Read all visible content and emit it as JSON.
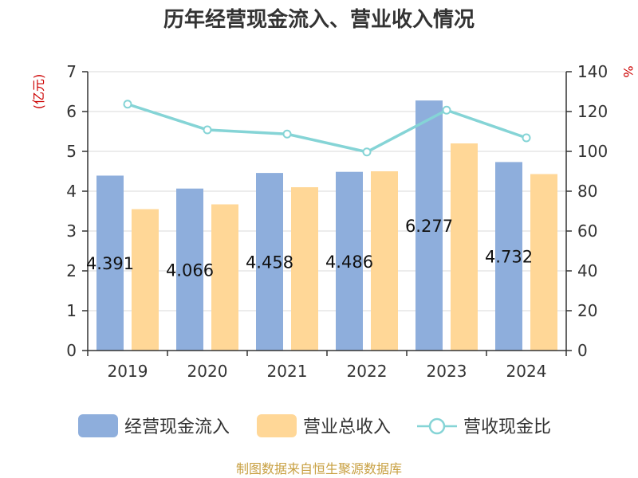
{
  "chart_data": {
    "type": "bar",
    "title": "历年经营现金流入、营业收入情况",
    "categories": [
      "2019",
      "2020",
      "2021",
      "2022",
      "2023",
      "2024"
    ],
    "series": [
      {
        "name": "经营现金流入",
        "axis": "left",
        "type": "bar",
        "color": "#8eaedc",
        "values": [
          4.391,
          4.066,
          4.458,
          4.486,
          6.277,
          4.732
        ],
        "data_labels": [
          "4.391",
          "4.066",
          "4.458",
          "4.486",
          "6.277",
          "4.732"
        ]
      },
      {
        "name": "营业总收入",
        "axis": "left",
        "type": "bar",
        "color": "#ffd797",
        "values": [
          3.55,
          3.67,
          4.1,
          4.5,
          5.2,
          4.43
        ]
      },
      {
        "name": "营收现金比",
        "axis": "right",
        "type": "line",
        "color": "#85d4d6",
        "values": [
          123.7,
          110.8,
          108.7,
          99.7,
          120.7,
          106.8
        ]
      }
    ],
    "y_left": {
      "unit": "(亿元)",
      "range": [
        0,
        7
      ],
      "ticks": [
        "0",
        "1",
        "2",
        "3",
        "4",
        "5",
        "6",
        "7"
      ]
    },
    "y_right": {
      "unit": "%",
      "range": [
        0,
        140
      ],
      "ticks": [
        "0",
        "20",
        "40",
        "60",
        "80",
        "100",
        "120",
        "140"
      ]
    },
    "grid": true,
    "legend_position": "bottom"
  },
  "source": "制图数据来自恒生聚源数据库"
}
